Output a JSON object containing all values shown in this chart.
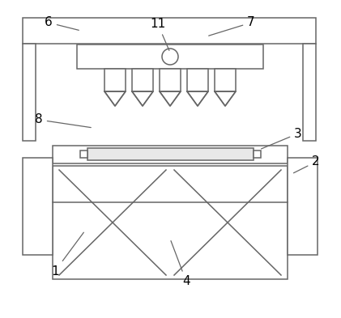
{
  "line_color": "#666666",
  "bg_color": "#ffffff",
  "lw": 1.1,
  "label_fontsize": 11,
  "fig_w": 4.21,
  "fig_h": 3.93,
  "dpi": 100
}
